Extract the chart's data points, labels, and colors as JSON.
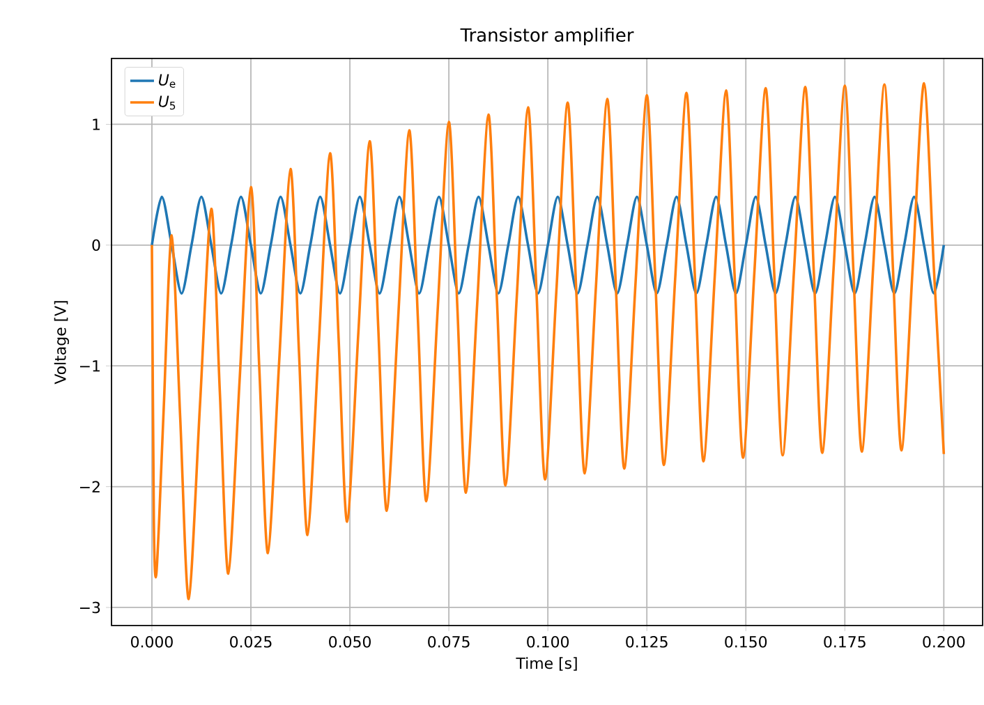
{
  "chart_data": {
    "type": "line",
    "title": "Transistor amplifier",
    "xlabel": "Time [s]",
    "ylabel": "Voltage [V]",
    "xlim": [
      -0.0102,
      0.2098
    ],
    "ylim": [
      -3.15,
      1.545
    ],
    "xticks": [
      {
        "value": 0,
        "label": "0.000"
      },
      {
        "value": 0.025,
        "label": "0.025"
      },
      {
        "value": 0.05,
        "label": "0.050"
      },
      {
        "value": 0.075,
        "label": "0.075"
      },
      {
        "value": 0.1,
        "label": "0.100"
      },
      {
        "value": 0.125,
        "label": "0.125"
      },
      {
        "value": 0.15,
        "label": "0.150"
      },
      {
        "value": 0.175,
        "label": "0.175"
      },
      {
        "value": 0.2,
        "label": "0.200"
      }
    ],
    "yticks": [
      {
        "value": -3,
        "label": "−3"
      },
      {
        "value": -2,
        "label": "−2"
      },
      {
        "value": -1,
        "label": "−1"
      },
      0,
      1
    ],
    "grid": true,
    "legend": "top left",
    "line_style": "solid",
    "series": [
      {
        "name": "*U*$_{e}$",
        "color": "#1f77b4",
        "x": [
          0,
          0.0025,
          0.005,
          0.0075,
          0.01,
          0.0125,
          0.015,
          0.0175,
          0.02,
          0.0225,
          0.025,
          0.0275,
          0.03,
          0.0325,
          0.035,
          0.0375,
          0.04,
          0.0425,
          0.045,
          0.0475,
          0.05,
          0.0525,
          0.055,
          0.0575,
          0.06,
          0.0625,
          0.065,
          0.0675,
          0.07,
          0.0725,
          0.075,
          0.0775,
          0.08,
          0.0825,
          0.085,
          0.0875,
          0.09,
          0.0925,
          0.095,
          0.0975,
          0.1,
          0.1025,
          0.105,
          0.1075,
          0.11,
          0.1125,
          0.115,
          0.1175,
          0.12,
          0.1225,
          0.125,
          0.1275,
          0.13,
          0.1325,
          0.135,
          0.1375,
          0.14,
          0.1425,
          0.145,
          0.1475,
          0.15,
          0.1525,
          0.155,
          0.1575,
          0.16,
          0.1625,
          0.165,
          0.1675,
          0.17,
          0.1725,
          0.175,
          0.1775,
          0.18,
          0.1825,
          0.185,
          0.1875,
          0.19,
          0.1925,
          0.195,
          0.1975,
          0.2
        ],
        "values": [
          0,
          0.4,
          0,
          -0.4,
          0,
          0.4,
          0,
          -0.4,
          0,
          0.4,
          0,
          -0.4,
          0,
          0.4,
          0,
          -0.4,
          0,
          0.4,
          0,
          -0.4,
          0,
          0.4,
          0,
          -0.4,
          0,
          0.4,
          0,
          -0.4,
          0,
          0.4,
          0,
          -0.4,
          0,
          0.4,
          0,
          -0.4,
          0,
          0.4,
          0,
          -0.4,
          0,
          0.4,
          0,
          -0.4,
          0,
          0.4,
          0,
          -0.4,
          0,
          0.4,
          0,
          -0.4,
          0,
          0.4,
          0,
          -0.4,
          0,
          0.4,
          0,
          -0.4,
          0,
          0.4,
          0,
          -0.4,
          0,
          0.4,
          0,
          -0.4,
          0,
          0.4,
          0,
          -0.4,
          0,
          0.4,
          0,
          -0.4,
          0,
          0.4,
          0,
          -0.4,
          0
        ]
      },
      {
        "name": "*U*$_{5}$",
        "color": "#ff7f0e",
        "x": [
          0,
          0.0005,
          0.001,
          0.0018,
          0.003,
          0.005,
          0.00715,
          0.0093,
          0.01215,
          0.015,
          0.01715,
          0.0193,
          0.02215,
          0.025,
          0.02715,
          0.0293,
          0.03215,
          0.035,
          0.03715,
          0.0393,
          0.04215,
          0.045,
          0.04715,
          0.0493,
          0.05215,
          0.055,
          0.05715,
          0.0593,
          0.06215,
          0.065,
          0.06715,
          0.0693,
          0.07215,
          0.075,
          0.07715,
          0.0793,
          0.08215,
          0.085,
          0.08715,
          0.0893,
          0.09215,
          0.095,
          0.09715,
          0.0993,
          0.10215,
          0.105,
          0.10715,
          0.1093,
          0.11215,
          0.115,
          0.11715,
          0.1193,
          0.12215,
          0.125,
          0.12715,
          0.1293,
          0.13215,
          0.135,
          0.13715,
          0.1393,
          0.14215,
          0.145,
          0.14715,
          0.1493,
          0.15215,
          0.155,
          0.15715,
          0.1593,
          0.16215,
          0.165,
          0.16715,
          0.1693,
          0.17215,
          0.175,
          0.17715,
          0.1793,
          0.18215,
          0.185,
          0.18715,
          0.1893,
          0.19215,
          0.195,
          0.1975,
          0.2
        ],
        "values": [
          0,
          -2.3,
          -2.75,
          -2.3,
          -1.34,
          0.08,
          -1.43,
          -2.93,
          -1.32,
          0.3,
          -1.21,
          -2.72,
          -1.12,
          0.48,
          -1.04,
          -2.55,
          -0.96,
          0.63,
          -0.89,
          -2.4,
          -0.82,
          0.76,
          -0.77,
          -2.29,
          -0.72,
          0.86,
          -0.67,
          -2.2,
          -0.63,
          0.95,
          -0.59,
          -2.12,
          -0.55,
          1.02,
          -0.52,
          -2.05,
          -0.49,
          1.08,
          -0.46,
          -1.99,
          -0.43,
          1.14,
          -0.4,
          -1.94,
          -0.38,
          1.18,
          -0.36,
          -1.89,
          -0.34,
          1.21,
          -0.32,
          -1.85,
          -0.31,
          1.24,
          -0.29,
          -1.82,
          -0.28,
          1.26,
          -0.27,
          -1.79,
          -0.26,
          1.28,
          -0.24,
          -1.76,
          -0.23,
          1.3,
          -0.22,
          -1.74,
          -0.22,
          1.31,
          -0.21,
          -1.72,
          -0.2,
          1.32,
          -0.2,
          -1.71,
          -0.19,
          1.33,
          -0.19,
          -1.7,
          -0.18,
          1.34,
          -0.2,
          -1.73
        ]
      }
    ]
  }
}
